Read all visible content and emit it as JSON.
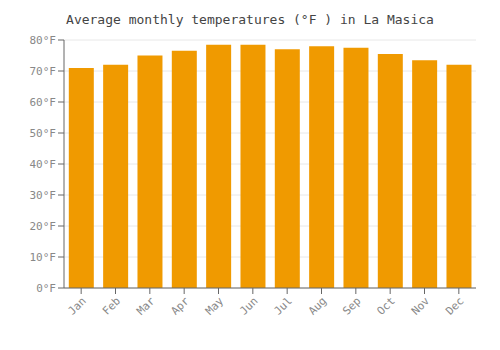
{
  "chart_data": {
    "type": "bar",
    "title": "Average monthly temperatures (°F ) in La Masica",
    "categories": [
      "Jan",
      "Feb",
      "Mar",
      "Apr",
      "May",
      "Jun",
      "Jul",
      "Aug",
      "Sep",
      "Oct",
      "Nov",
      "Dec"
    ],
    "values": [
      71,
      72,
      75,
      76.5,
      78.5,
      78.5,
      77,
      78,
      77.5,
      75.5,
      73.5,
      72
    ],
    "color": "#F09A00",
    "ylim": [
      0,
      80
    ],
    "yticks": [
      {
        "value": 0,
        "label": "0°F"
      },
      {
        "value": 10,
        "label": "10°F"
      },
      {
        "value": 20,
        "label": "20°F"
      },
      {
        "value": 30,
        "label": "30°F"
      },
      {
        "value": 40,
        "label": "40°F"
      },
      {
        "value": 50,
        "label": "50°F"
      },
      {
        "value": 60,
        "label": "60°F"
      },
      {
        "value": 70,
        "label": "70°F"
      },
      {
        "value": 80,
        "label": "80°F"
      }
    ],
    "grid": true
  }
}
